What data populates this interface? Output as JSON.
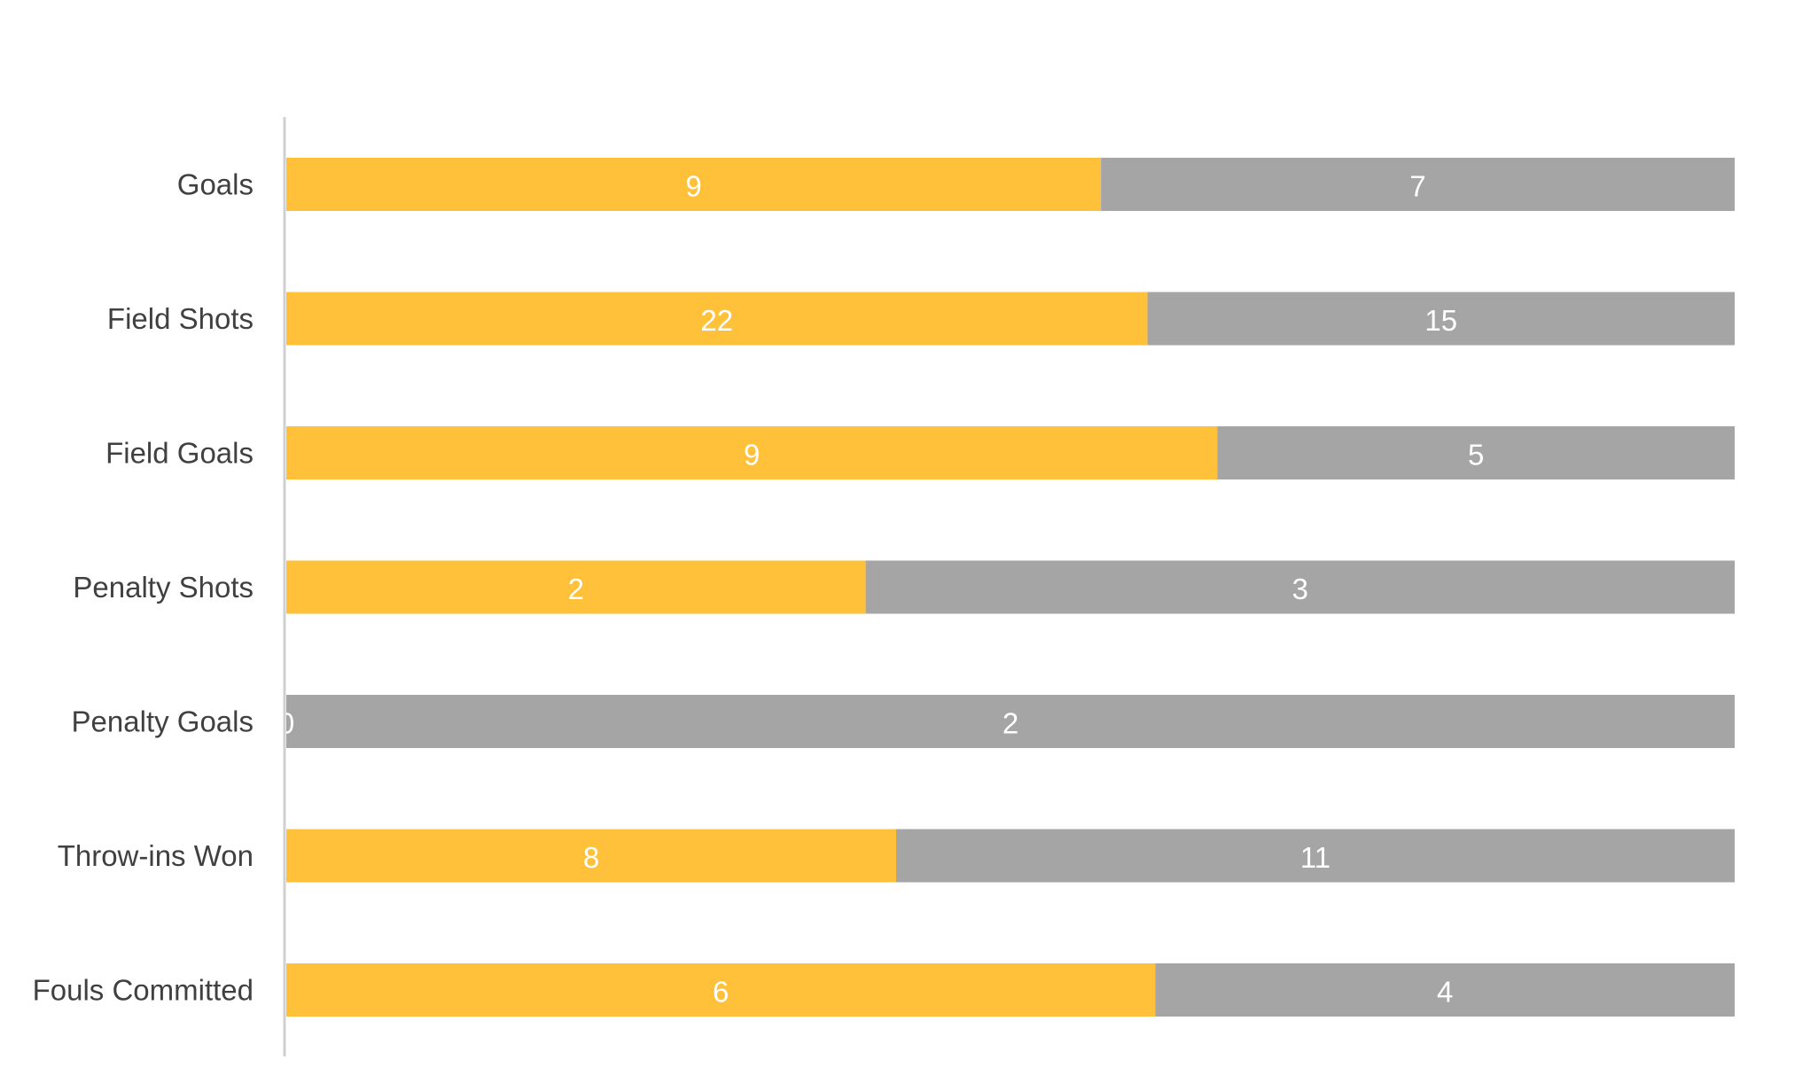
{
  "chart_data": {
    "type": "bar",
    "orientation": "horizontal",
    "stacked": "100%",
    "title": "",
    "xlabel": "",
    "ylabel": "",
    "legend": "none",
    "grid": false,
    "categories": [
      "Goals",
      "Field Shots",
      "Field Goals",
      "Penalty Shots",
      "Penalty Goals",
      "Throw-ins Won",
      "Fouls Committed"
    ],
    "series": [
      {
        "values": [
          9,
          22,
          9,
          2,
          0,
          8,
          6
        ],
        "color": "#FFC13A"
      },
      {
        "values": [
          7,
          15,
          5,
          3,
          2,
          11,
          4
        ],
        "color": "#A5A5A5"
      }
    ]
  }
}
